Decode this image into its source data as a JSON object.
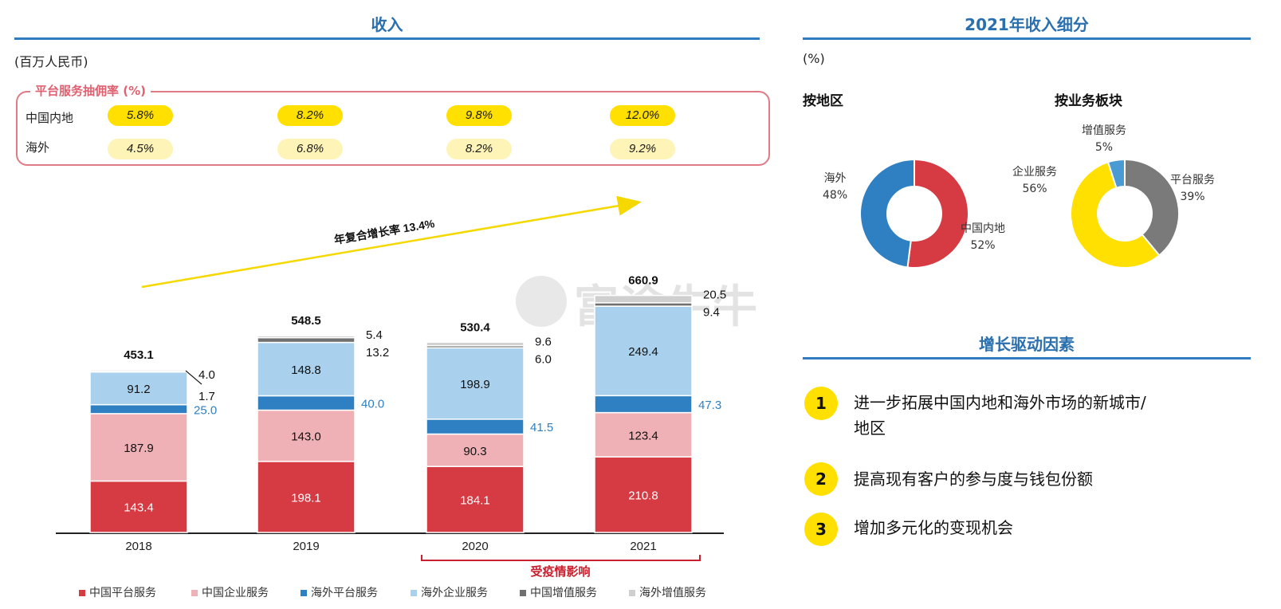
{
  "left_title": "收入",
  "unit_label": "(百万人民币)",
  "commission": {
    "title": "平台服务抽佣率 (%)",
    "rows": [
      {
        "label": "中国内地",
        "values": [
          "5.8%",
          "8.2%",
          "9.8%",
          "12.0%"
        ]
      },
      {
        "label": "海外",
        "values": [
          "4.5%",
          "6.8%",
          "8.2%",
          "9.2%"
        ]
      }
    ]
  },
  "cagr_label": "年复合增长率 13.4%",
  "covid_label": "受疫情影响",
  "watermark": "富途牛牛",
  "chart_data": {
    "type": "bar",
    "stacked": true,
    "categories": [
      "2018",
      "2019",
      "2020",
      "2021"
    ],
    "series": [
      {
        "name": "中国平台服务",
        "color": "#d63a43",
        "values": [
          143.4,
          198.1,
          184.1,
          210.8
        ]
      },
      {
        "name": "中国企业服务",
        "color": "#efb1b6",
        "values": [
          187.9,
          143.0,
          90.3,
          123.4
        ]
      },
      {
        "name": "海外平台服务",
        "color": "#2e80c2",
        "values": [
          25.0,
          40.0,
          41.5,
          47.3
        ]
      },
      {
        "name": "海外企业服务",
        "color": "#a9d0ec",
        "values": [
          91.2,
          148.8,
          198.9,
          249.4
        ]
      },
      {
        "name": "中国增值服务",
        "color": "#707070",
        "values": [
          1.7,
          13.2,
          6.0,
          9.4
        ]
      },
      {
        "name": "海外增值服务",
        "color": "#cfcfcf",
        "values": [
          4.0,
          5.4,
          9.6,
          20.5
        ]
      }
    ],
    "totals": [
      "453.1",
      "548.5",
      "530.4",
      "660.9"
    ],
    "value_labels": [
      [
        "143.4",
        "198.1",
        "184.1",
        "210.8"
      ],
      [
        "187.9",
        "143.0",
        "90.3",
        "123.4"
      ],
      [
        "25.0",
        "40.0",
        "41.5",
        "47.3"
      ],
      [
        "91.2",
        "148.8",
        "198.9",
        "249.4"
      ],
      [
        "1.7",
        "13.2",
        "6.0",
        "9.4"
      ],
      [
        "4.0",
        "5.4",
        "9.6",
        "20.5"
      ]
    ],
    "ylim": [
      0,
      700
    ],
    "legend_position": "bottom"
  },
  "right_title": "2021年收入细分",
  "pct_unit": "(%)",
  "donut_region": {
    "title": "按地区",
    "slices": [
      {
        "label": "中国内地",
        "pct": "52%",
        "value": 52,
        "color": "#d63a43"
      },
      {
        "label": "海外",
        "pct": "48%",
        "value": 48,
        "color": "#2e80c2"
      }
    ]
  },
  "donut_segment": {
    "title": "按业务板块",
    "slices": [
      {
        "label": "平台服务",
        "pct": "39%",
        "value": 39,
        "color": "#7a7a7a"
      },
      {
        "label": "企业服务",
        "pct": "56%",
        "value": 56,
        "color": "#ffe000"
      },
      {
        "label": "增值服务",
        "pct": "5%",
        "value": 5,
        "color": "#4a9ad4"
      }
    ]
  },
  "drivers_title": "增长驱动因素",
  "drivers": [
    {
      "num": "1",
      "text": "进一步拓展中国内地和海外市场的新城市/地区"
    },
    {
      "num": "2",
      "text": "提高现有客户的参与度与钱包份额"
    },
    {
      "num": "3",
      "text": "增加多元化的变现机会"
    }
  ]
}
